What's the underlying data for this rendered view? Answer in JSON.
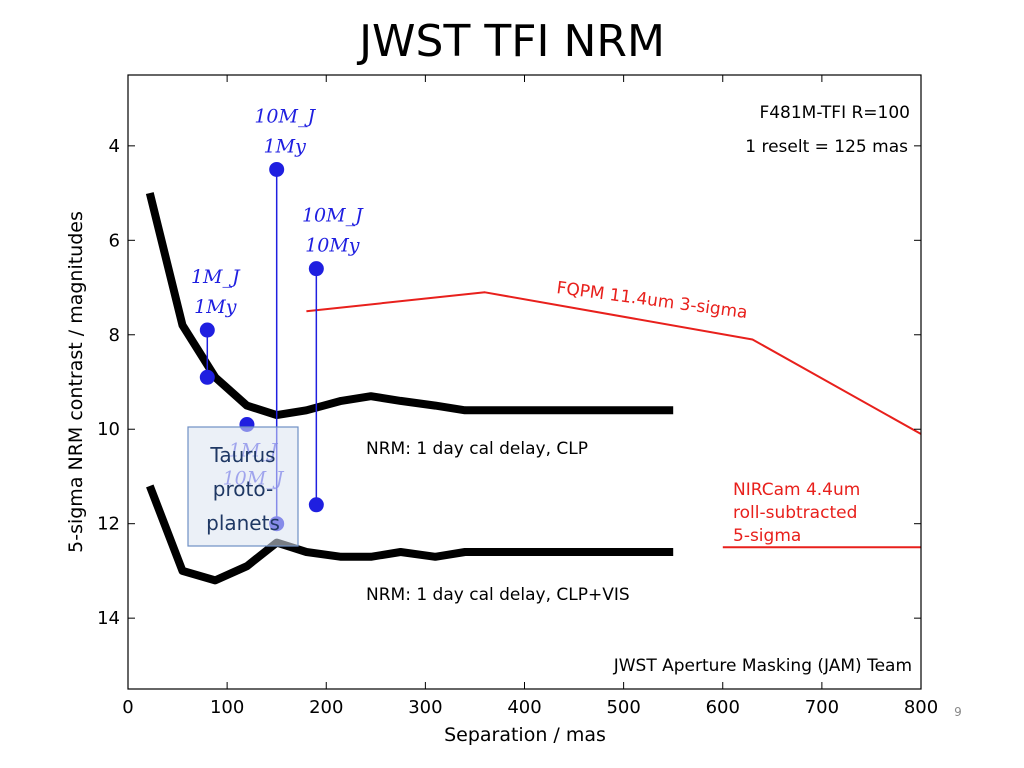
{
  "slide": {
    "title": "JWST TFI NRM",
    "page_number": "9"
  },
  "chart_data": {
    "type": "line",
    "xlabel": "Separation / mas",
    "ylabel": "5-sigma NRM contrast / magnitudes",
    "xlim": [
      0,
      800
    ],
    "ylim": [
      15.5,
      2.5
    ],
    "y_inverted": true,
    "x_ticks": [
      0,
      100,
      200,
      300,
      400,
      500,
      600,
      700,
      800
    ],
    "y_ticks": [
      4,
      6,
      8,
      10,
      12,
      14
    ],
    "grid": false,
    "series": [
      {
        "name": "NRM: 1 day cal delay, CLP",
        "color": "#000000",
        "points": [
          [
            22,
            5.0
          ],
          [
            55,
            7.8
          ],
          [
            88,
            8.9
          ],
          [
            120,
            9.5
          ],
          [
            150,
            9.7
          ],
          [
            180,
            9.6
          ],
          [
            215,
            9.4
          ],
          [
            245,
            9.3
          ],
          [
            275,
            9.4
          ],
          [
            310,
            9.5
          ],
          [
            340,
            9.6
          ],
          [
            400,
            9.6
          ],
          [
            550,
            9.6
          ]
        ]
      },
      {
        "name": "NRM: 1 day cal delay, CLP+VIS",
        "color": "#000000",
        "points": [
          [
            22,
            11.2
          ],
          [
            55,
            13.0
          ],
          [
            88,
            13.2
          ],
          [
            120,
            12.9
          ],
          [
            150,
            12.4
          ],
          [
            180,
            12.6
          ],
          [
            215,
            12.7
          ],
          [
            245,
            12.7
          ],
          [
            275,
            12.6
          ],
          [
            310,
            12.7
          ],
          [
            340,
            12.6
          ],
          [
            400,
            12.6
          ],
          [
            550,
            12.6
          ]
        ]
      },
      {
        "name": "FQPM 11.4um 3-sigma",
        "color": "#e8201c",
        "points": [
          [
            180,
            7.5
          ],
          [
            360,
            7.1
          ],
          [
            630,
            8.1
          ],
          [
            800,
            10.1
          ]
        ]
      },
      {
        "name": "NIRCam 4.4um roll-subtracted 5-sigma",
        "color": "#e8201c",
        "points": [
          [
            600,
            12.5
          ],
          [
            800,
            12.5
          ]
        ]
      }
    ],
    "planets": [
      {
        "x": 80,
        "y_top": 7.9,
        "y_bottom": 8.9,
        "label_line1": "1M_J",
        "label_line2": "1My"
      },
      {
        "x": 150,
        "y_top": 4.5,
        "y_bottom": 12.0,
        "label_line1": "10M_J",
        "label_line2": "1My"
      },
      {
        "x": 190,
        "y_top": 6.6,
        "y_bottom": 11.6,
        "label_line1": "10M_J",
        "label_line2": "10My"
      },
      {
        "x": 120,
        "y_top": 9.9,
        "y_bottom": 9.9,
        "label_line1": "1M_J",
        "label_line2": "10M_J"
      }
    ],
    "annotations": {
      "filter": "F481M-TFI  R=100",
      "reselt": "1 reselt = 125 mas",
      "clp": "NRM: 1 day cal delay, CLP",
      "clp_vis": "NRM: 1 day cal delay, CLP+VIS",
      "fqpm": "FQPM 11.4um 3-sigma",
      "nircam_line1": "NIRCam 4.4um",
      "nircam_line2": "roll-subtracted",
      "nircam_line3": "5-sigma",
      "team": "JWST Aperture Masking (JAM) Team",
      "taurus_line1": "Taurus",
      "taurus_line2": "proto-",
      "taurus_line3": "planets"
    },
    "colors": {
      "nrm": "#000000",
      "red": "#e8201c",
      "planet": "#1f1fe0",
      "taurus_fill": "#dbe3f0",
      "taurus_text": "#1f3864"
    }
  }
}
